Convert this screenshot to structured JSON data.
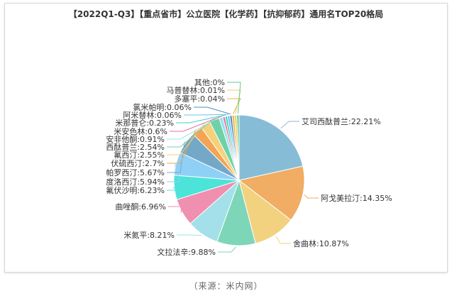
{
  "chart_data": {
    "type": "pie",
    "title": "【2022Q1-Q3】【重点省市】公立医院【化学药】【抗抑郁药】通用名TOP20格局",
    "slices": [
      {
        "label": "艾司西酞普兰:22.21%",
        "value": 22.21,
        "color": "#87bcd7"
      },
      {
        "label": "阿戈美拉汀:14.35%",
        "value": 14.35,
        "color": "#f0ad63"
      },
      {
        "label": "舍曲林:10.87%",
        "value": 10.87,
        "color": "#f2d27e"
      },
      {
        "label": "文拉法辛:9.88%",
        "value": 9.88,
        "color": "#7ed6b8"
      },
      {
        "label": "米氮平:8.21%",
        "value": 8.21,
        "color": "#a3e0ea"
      },
      {
        "label": "曲唑酮:6.96%",
        "value": 6.96,
        "color": "#f08fb0"
      },
      {
        "label": "氟伏沙明:6.23%",
        "value": 6.23,
        "color": "#4ce3d8"
      },
      {
        "label": "度洛西汀:5.94%",
        "value": 5.94,
        "color": "#8fd0f6"
      },
      {
        "label": "帕罗西汀:5.67%",
        "value": 5.67,
        "color": "#74a8c7"
      },
      {
        "label": "伏硫西汀:2.7%",
        "value": 2.7,
        "color": "#f3a553"
      },
      {
        "label": "氟西汀:2.55%",
        "value": 2.55,
        "color": "#f4d17a"
      },
      {
        "label": "西酞普兰:2.54%",
        "value": 2.54,
        "color": "#6fd1a8"
      },
      {
        "label": "安非他酮:0.91%",
        "value": 0.91,
        "color": "#94e3ec"
      },
      {
        "label": "米安色林:0.6%",
        "value": 0.6,
        "color": "#f06e9b"
      },
      {
        "label": "米那普仑:0.23%",
        "value": 0.23,
        "color": "#38d6c9"
      },
      {
        "label": "阿米替林:0.06%",
        "value": 0.06,
        "color": "#6ec1f2"
      },
      {
        "label": "氯米帕明:0.06%",
        "value": 0.06,
        "color": "#4f8fb5"
      },
      {
        "label": "多塞平:0.04%",
        "value": 0.04,
        "color": "#f1b24a"
      },
      {
        "label": "马普替林:0.01%",
        "value": 0.01,
        "color": "#e8cf5a"
      },
      {
        "label": "其他:0%",
        "value": 0.0,
        "color": "#62c99a"
      }
    ]
  },
  "source": "（来源：米内网）"
}
